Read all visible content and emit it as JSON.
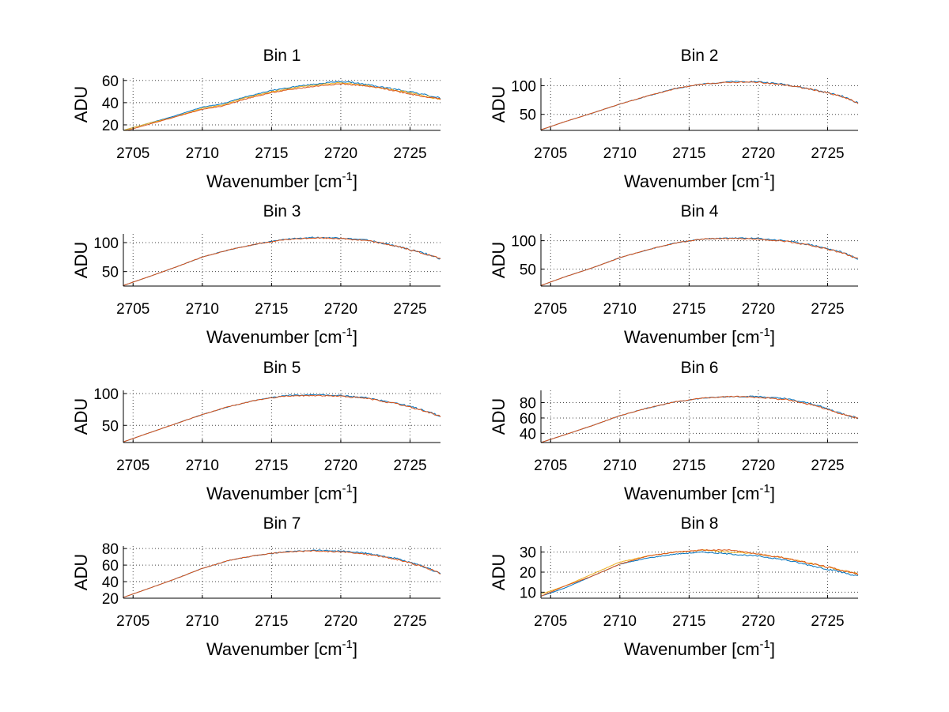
{
  "chart_data": [
    {
      "type": "line",
      "title": "Bin 1",
      "xlabel": "Wavenumber [cm",
      "xlabel_sup": "-1",
      "xlabel_end": "]",
      "ylabel": "ADU",
      "xlim": [
        2704.3,
        2727.2
      ],
      "ylim": [
        15,
        62
      ],
      "xticks": [
        2705,
        2710,
        2715,
        2720,
        2725
      ],
      "yticks": [
        20,
        40,
        60
      ],
      "grid": true,
      "series": [
        {
          "color": "#0072bd",
          "x": [
            2704.3,
            2706,
            2708,
            2710,
            2711.5,
            2713,
            2715,
            2717,
            2719,
            2720,
            2721,
            2723,
            2725,
            2727.2
          ],
          "y": [
            15,
            21,
            28,
            36,
            39,
            45,
            51,
            55,
            58,
            59,
            58,
            54,
            50,
            44
          ]
        },
        {
          "color": "#edb120",
          "x": [
            2704.3,
            2706,
            2708,
            2710,
            2711.5,
            2713,
            2715,
            2717,
            2719,
            2720,
            2721,
            2723,
            2725,
            2727.2
          ],
          "y": [
            15,
            21,
            27,
            35,
            38,
            44,
            50,
            54,
            57,
            58,
            57,
            53,
            49,
            43
          ]
        },
        {
          "color": "#d95319",
          "x": [
            2704.3,
            2706,
            2708,
            2710,
            2711.5,
            2713,
            2715,
            2717,
            2719,
            2720,
            2721,
            2723,
            2725,
            2727.2
          ],
          "y": [
            14,
            20,
            27,
            34,
            37,
            43,
            49,
            53,
            56,
            57,
            56,
            53,
            48,
            43
          ]
        }
      ]
    },
    {
      "type": "line",
      "title": "Bin 2",
      "xlabel": "Wavenumber [cm",
      "xlabel_sup": "-1",
      "xlabel_end": "]",
      "ylabel": "ADU",
      "xlim": [
        2704.3,
        2727.2
      ],
      "ylim": [
        22,
        113
      ],
      "xticks": [
        2705,
        2710,
        2715,
        2720,
        2725
      ],
      "yticks": [
        50,
        100
      ],
      "grid": true,
      "series": [
        {
          "color": "#0072bd",
          "x": [
            2704.3,
            2706,
            2708,
            2710,
            2712,
            2714,
            2716,
            2718,
            2720,
            2722,
            2724,
            2726,
            2727.2
          ],
          "y": [
            23,
            37,
            52,
            68,
            82,
            95,
            103,
            107,
            107,
            102,
            93,
            82,
            70
          ]
        },
        {
          "color": "#d95319",
          "x": [
            2704.3,
            2706,
            2708,
            2710,
            2712,
            2714,
            2716,
            2718,
            2720,
            2722,
            2724,
            2726,
            2727.2
          ],
          "y": [
            23,
            37,
            52,
            68,
            82,
            95,
            103,
            106,
            106,
            101,
            93,
            81,
            70
          ]
        }
      ]
    },
    {
      "type": "line",
      "title": "Bin 3",
      "xlabel": "Wavenumber [cm",
      "xlabel_sup": "-1",
      "xlabel_end": "]",
      "ylabel": "ADU",
      "xlim": [
        2704.3,
        2727.2
      ],
      "ylim": [
        25,
        115
      ],
      "xticks": [
        2705,
        2710,
        2715,
        2720,
        2725
      ],
      "yticks": [
        50,
        100
      ],
      "grid": true,
      "series": [
        {
          "color": "#0072bd",
          "x": [
            2704.3,
            2706,
            2708,
            2710,
            2712,
            2714,
            2716,
            2718,
            2720,
            2722,
            2724,
            2726,
            2727.2
          ],
          "y": [
            26,
            40,
            57,
            75,
            88,
            98,
            106,
            109,
            108,
            104,
            94,
            82,
            72
          ]
        },
        {
          "color": "#d95319",
          "x": [
            2704.3,
            2706,
            2708,
            2710,
            2712,
            2714,
            2716,
            2718,
            2720,
            2722,
            2724,
            2726,
            2727.2
          ],
          "y": [
            26,
            40,
            57,
            75,
            88,
            98,
            105,
            108,
            107,
            103,
            94,
            81,
            72
          ]
        }
      ]
    },
    {
      "type": "line",
      "title": "Bin 4",
      "xlabel": "Wavenumber [cm",
      "xlabel_sup": "-1",
      "xlabel_end": "]",
      "ylabel": "ADU",
      "xlim": [
        2704.3,
        2727.2
      ],
      "ylim": [
        20,
        112
      ],
      "xticks": [
        2705,
        2710,
        2715,
        2720,
        2725
      ],
      "yticks": [
        50,
        100
      ],
      "grid": true,
      "series": [
        {
          "color": "#0072bd",
          "x": [
            2704.3,
            2706,
            2708,
            2710,
            2712,
            2714,
            2716,
            2718,
            2720,
            2722,
            2724,
            2726,
            2727.2
          ],
          "y": [
            21,
            36,
            52,
            70,
            84,
            96,
            103,
            105,
            104,
            100,
            92,
            80,
            68
          ]
        },
        {
          "color": "#d95319",
          "x": [
            2704.3,
            2706,
            2708,
            2710,
            2712,
            2714,
            2716,
            2718,
            2720,
            2722,
            2724,
            2726,
            2727.2
          ],
          "y": [
            21,
            36,
            52,
            70,
            84,
            96,
            103,
            104,
            103,
            99,
            91,
            79,
            68
          ]
        }
      ]
    },
    {
      "type": "line",
      "title": "Bin 5",
      "xlabel": "Wavenumber [cm",
      "xlabel_sup": "-1",
      "xlabel_end": "]",
      "ylabel": "ADU",
      "xlim": [
        2704.3,
        2727.2
      ],
      "ylim": [
        23,
        105
      ],
      "xticks": [
        2705,
        2710,
        2715,
        2720,
        2725
      ],
      "yticks": [
        50,
        100
      ],
      "grid": true,
      "series": [
        {
          "color": "#0072bd",
          "x": [
            2704.3,
            2706,
            2708,
            2710,
            2712,
            2714,
            2716,
            2718,
            2720,
            2722,
            2724,
            2726,
            2727.2
          ],
          "y": [
            24,
            37,
            52,
            67,
            80,
            90,
            97,
            98,
            97,
            93,
            85,
            74,
            64
          ]
        },
        {
          "color": "#d95319",
          "x": [
            2704.3,
            2706,
            2708,
            2710,
            2712,
            2714,
            2716,
            2718,
            2720,
            2722,
            2724,
            2726,
            2727.2
          ],
          "y": [
            24,
            37,
            52,
            67,
            80,
            90,
            96,
            97,
            96,
            92,
            84,
            73,
            64
          ]
        }
      ]
    },
    {
      "type": "line",
      "title": "Bin 6",
      "xlabel": "Wavenumber [cm",
      "xlabel_sup": "-1",
      "xlabel_end": "]",
      "ylabel": "ADU",
      "xlim": [
        2704.3,
        2727.2
      ],
      "ylim": [
        28,
        96
      ],
      "xticks": [
        2705,
        2710,
        2715,
        2720,
        2725
      ],
      "yticks": [
        40,
        60,
        80
      ],
      "grid": true,
      "series": [
        {
          "color": "#0072bd",
          "x": [
            2704.3,
            2706,
            2708,
            2710,
            2712,
            2714,
            2716,
            2718,
            2720,
            2722,
            2724,
            2725,
            2726,
            2727.2
          ],
          "y": [
            28,
            38,
            50,
            63,
            73,
            81,
            86,
            88,
            88,
            85,
            78,
            72,
            66,
            60
          ]
        },
        {
          "color": "#d95319",
          "x": [
            2704.3,
            2706,
            2708,
            2710,
            2712,
            2714,
            2716,
            2718,
            2720,
            2722,
            2724,
            2725,
            2726,
            2727.2
          ],
          "y": [
            28,
            38,
            50,
            63,
            73,
            81,
            86,
            88,
            87,
            84,
            77,
            71,
            65,
            60
          ]
        }
      ]
    },
    {
      "type": "line",
      "title": "Bin 7",
      "xlabel": "Wavenumber [cm",
      "xlabel_sup": "-1",
      "xlabel_end": "]",
      "ylabel": "ADU",
      "xlim": [
        2704.3,
        2727.2
      ],
      "ylim": [
        20,
        83
      ],
      "xticks": [
        2705,
        2710,
        2715,
        2720,
        2725
      ],
      "yticks": [
        20,
        40,
        60,
        80
      ],
      "grid": true,
      "series": [
        {
          "color": "#0072bd",
          "x": [
            2704.3,
            2706,
            2708,
            2710,
            2712,
            2714,
            2716,
            2718,
            2720,
            2722,
            2724,
            2726,
            2727.2
          ],
          "y": [
            21,
            31,
            43,
            56,
            66,
            72,
            76,
            78,
            77,
            74,
            68,
            58,
            50
          ]
        },
        {
          "color": "#d95319",
          "x": [
            2704.3,
            2706,
            2708,
            2710,
            2712,
            2714,
            2716,
            2718,
            2720,
            2722,
            2724,
            2726,
            2727.2
          ],
          "y": [
            21,
            31,
            43,
            56,
            66,
            72,
            76,
            77,
            76,
            73,
            67,
            58,
            50
          ]
        }
      ]
    },
    {
      "type": "line",
      "title": "Bin 8",
      "xlabel": "Wavenumber [cm",
      "xlabel_sup": "-1",
      "xlabel_end": "]",
      "ylabel": "ADU",
      "xlim": [
        2704.3,
        2727.2
      ],
      "ylim": [
        7,
        33
      ],
      "xticks": [
        2705,
        2710,
        2715,
        2720,
        2725
      ],
      "yticks": [
        10,
        20,
        30
      ],
      "grid": true,
      "series": [
        {
          "color": "#0072bd",
          "x": [
            2704.3,
            2706,
            2708,
            2710,
            2712,
            2714,
            2716,
            2718,
            2720,
            2722,
            2724,
            2726,
            2727.2
          ],
          "y": [
            8,
            12,
            18,
            24,
            27,
            29,
            30,
            29,
            28,
            26,
            23,
            20,
            18
          ]
        },
        {
          "color": "#edb120",
          "x": [
            2704.3,
            2706,
            2708,
            2710,
            2712,
            2714,
            2716,
            2718,
            2720,
            2722,
            2724,
            2726,
            2727.2
          ],
          "y": [
            9,
            13,
            19,
            25,
            28,
            30,
            31,
            30,
            29,
            27,
            24,
            21,
            19
          ]
        },
        {
          "color": "#d95319",
          "x": [
            2704.3,
            2706,
            2708,
            2710,
            2712,
            2714,
            2716,
            2718,
            2720,
            2722,
            2724,
            2726,
            2727.2
          ],
          "y": [
            8,
            13,
            18,
            24,
            28,
            30,
            31,
            31,
            29,
            27,
            24,
            21,
            19
          ]
        }
      ]
    }
  ]
}
